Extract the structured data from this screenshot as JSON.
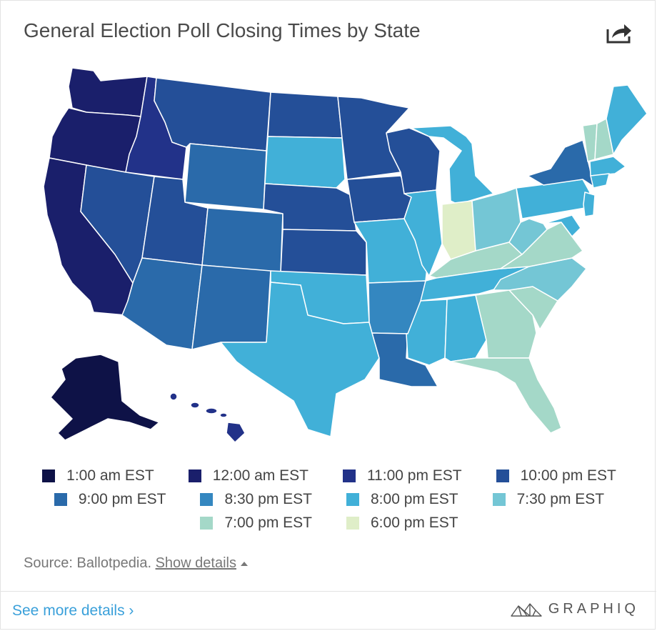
{
  "header": {
    "title": "General Election Poll Closing Times by State",
    "share_icon": "share-icon"
  },
  "legend": {
    "rows": [
      [
        {
          "label": "1:00 am EST",
          "color": "#0e1247"
        },
        {
          "label": "12:00 am EST",
          "color": "#1a1f6b"
        },
        {
          "label": "11:00 pm EST",
          "color": "#223289"
        },
        {
          "label": "10:00 pm EST",
          "color": "#244f98"
        }
      ],
      [
        {
          "label": "9:00 pm EST",
          "color": "#2a6aaa"
        },
        {
          "label": "8:30 pm EST",
          "color": "#3487c0"
        },
        {
          "label": "8:00 pm EST",
          "color": "#41b0d8"
        },
        {
          "label": "7:30 pm EST",
          "color": "#74c6d5"
        }
      ],
      [
        {
          "label": "7:00 pm EST",
          "color": "#a4d8c8"
        },
        {
          "label": "6:00 pm EST",
          "color": "#dfeec8"
        }
      ]
    ]
  },
  "footer": {
    "source_prefix": "Source: Ballotpedia. ",
    "show_details": "Show details",
    "see_more": "See more details ›",
    "brand": "GRAPHIQ"
  }
}
